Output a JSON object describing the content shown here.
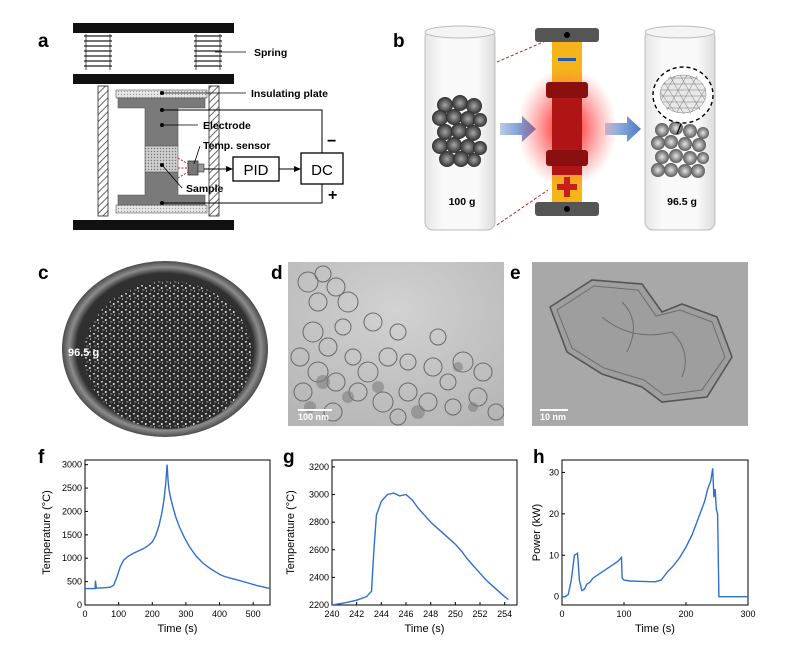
{
  "figure": {
    "panel_labels": [
      "a",
      "b",
      "c",
      "d",
      "e",
      "f",
      "g",
      "h"
    ]
  },
  "panel_a": {
    "labels": {
      "spring": "Spring",
      "insulating_plate": "Insulating plate",
      "electrode": "Electrode",
      "temp_sensor": "Temp. sensor",
      "sample": "Sample",
      "pid": "PID",
      "dc": "DC",
      "minus": "−",
      "plus": "+"
    }
  },
  "panel_b": {
    "mass_before": "100 g",
    "mass_after": "96.5 g",
    "minus": "−",
    "plus": "+"
  },
  "panel_c": {
    "mass": "96.5 g"
  },
  "panel_d": {
    "scalebar": "100 nm"
  },
  "panel_e": {
    "scalebar": "10 nm"
  },
  "chart_data": [
    {
      "panel": "f",
      "type": "line",
      "xlabel": "Time (s)",
      "ylabel": "Temperature (°C)",
      "xlim": [
        0,
        550
      ],
      "ylim": [
        0,
        3100
      ],
      "xticks": [
        0,
        100,
        200,
        300,
        400,
        500
      ],
      "yticks": [
        0,
        500,
        1000,
        1500,
        2000,
        2500,
        3000
      ],
      "color": "#2f6fd0",
      "series": [
        {
          "x": [
            0,
            25,
            30,
            31,
            34,
            60,
            75,
            85,
            95,
            105,
            115,
            130,
            145,
            160,
            175,
            190,
            200,
            210,
            220,
            228,
            235,
            240,
            244,
            247,
            249,
            252,
            256,
            262,
            270,
            280,
            295,
            310,
            330,
            350,
            370,
            390,
            405,
            415,
            430,
            450,
            480,
            510,
            550
          ],
          "y": [
            350,
            350,
            350,
            520,
            360,
            370,
            380,
            420,
            600,
            820,
            960,
            1050,
            1110,
            1160,
            1210,
            1280,
            1350,
            1480,
            1700,
            1950,
            2250,
            2600,
            3000,
            2650,
            2500,
            2380,
            2250,
            2080,
            1880,
            1680,
            1450,
            1250,
            1050,
            900,
            790,
            700,
            640,
            610,
            580,
            540,
            480,
            420,
            350
          ]
        }
      ]
    },
    {
      "panel": "g",
      "type": "line",
      "xlabel": "Time (s)",
      "ylabel": "Temperature (°C)",
      "xlim": [
        240,
        255
      ],
      "ylim": [
        2200,
        3250
      ],
      "xticks": [
        240,
        242,
        244,
        246,
        248,
        250,
        252,
        254
      ],
      "yticks": [
        2200,
        2400,
        2600,
        2800,
        3000,
        3200
      ],
      "color": "#2f6fd0",
      "series": [
        {
          "x": [
            240,
            241,
            242,
            242.8,
            243.2,
            243.4,
            243.6,
            244,
            244.5,
            245,
            245.5,
            246,
            246.5,
            247,
            247.5,
            248,
            248.5,
            249,
            249.5,
            250,
            250.5,
            251,
            251.5,
            252,
            252.5,
            253,
            253.5,
            254,
            254.3
          ],
          "y": [
            2200,
            2215,
            2235,
            2260,
            2300,
            2600,
            2850,
            2950,
            3000,
            3010,
            2990,
            3000,
            2960,
            2900,
            2850,
            2800,
            2760,
            2720,
            2680,
            2640,
            2590,
            2530,
            2480,
            2430,
            2380,
            2340,
            2300,
            2260,
            2240
          ]
        }
      ]
    },
    {
      "panel": "h",
      "type": "line",
      "xlabel": "Time (s)",
      "ylabel": "Power (kW)",
      "xlim": [
        0,
        300
      ],
      "ylim": [
        -2,
        33
      ],
      "xticks": [
        0,
        100,
        200,
        300
      ],
      "yticks": [
        0,
        10,
        20,
        30
      ],
      "color": "#2f6fd0",
      "series": [
        {
          "x": [
            0,
            5,
            10,
            15,
            20,
            25,
            28,
            32,
            36,
            40,
            45,
            50,
            60,
            70,
            80,
            90,
            96,
            97,
            100,
            110,
            130,
            150,
            160,
            165,
            170,
            180,
            190,
            200,
            210,
            220,
            230,
            235,
            240,
            243,
            245,
            247,
            249,
            251,
            253,
            255,
            260,
            280,
            300
          ],
          "y": [
            0,
            0,
            0.5,
            4,
            10,
            10.5,
            4,
            1.5,
            1.8,
            3,
            3.5,
            4.5,
            5.5,
            6.5,
            7.5,
            8.5,
            9.5,
            4.5,
            4,
            3.8,
            3.7,
            3.6,
            4,
            5,
            6,
            7.5,
            9.5,
            12,
            15,
            19,
            23,
            26,
            28,
            31,
            24,
            26,
            21,
            20,
            0,
            0,
            0,
            0,
            0
          ]
        }
      ]
    }
  ]
}
